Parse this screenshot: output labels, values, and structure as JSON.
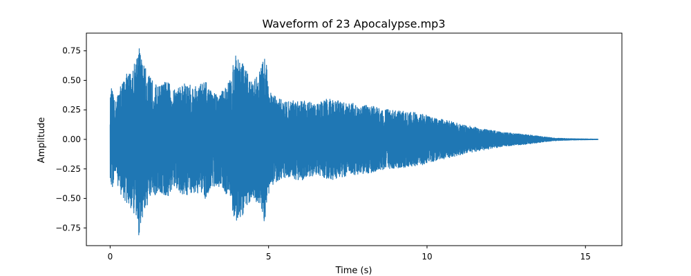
{
  "chart_data": {
    "type": "line",
    "title": "Waveform of 23 Apocalypse.mp3",
    "xlabel": "Time (s)",
    "ylabel": "Amplitude",
    "xlim": [
      -0.75,
      16.15
    ],
    "ylim": [
      -0.9,
      0.9
    ],
    "xticks": [
      0,
      5,
      10,
      15
    ],
    "yticks": [
      0.75,
      0.5,
      0.25,
      0.0,
      -0.25,
      -0.5,
      -0.75
    ],
    "xtick_labels": [
      "0",
      "5",
      "10",
      "15"
    ],
    "ytick_labels": [
      "0.75",
      "0.50",
      "0.25",
      "0.00",
      "−0.25",
      "−0.50",
      "−0.75"
    ],
    "grid": false,
    "legend": "none",
    "series": [
      {
        "color": "#1f77b4",
        "duration_s": 15.4,
        "envelope": {
          "t": [
            0.0,
            0.05,
            0.15,
            0.3,
            0.5,
            0.7,
            0.8,
            0.9,
            1.0,
            1.2,
            1.5,
            1.8,
            2.0,
            2.3,
            2.7,
            3.0,
            3.2,
            3.5,
            3.8,
            3.95,
            4.1,
            4.3,
            4.5,
            4.7,
            4.9,
            5.05,
            5.3,
            5.6,
            6.0,
            6.5,
            6.9,
            7.3,
            7.8,
            8.3,
            8.8,
            9.3,
            9.8,
            10.3,
            10.8,
            11.2,
            11.6,
            12.0,
            12.4,
            12.8,
            13.2,
            13.6,
            14.0,
            14.5,
            15.0,
            15.4
          ],
          "amplitude": [
            0.35,
            0.45,
            0.3,
            0.45,
            0.55,
            0.6,
            0.68,
            0.82,
            0.68,
            0.55,
            0.45,
            0.5,
            0.42,
            0.48,
            0.45,
            0.5,
            0.4,
            0.4,
            0.52,
            0.72,
            0.7,
            0.58,
            0.48,
            0.58,
            0.72,
            0.4,
            0.35,
            0.32,
            0.35,
            0.3,
            0.35,
            0.32,
            0.3,
            0.28,
            0.25,
            0.24,
            0.22,
            0.18,
            0.15,
            0.12,
            0.1,
            0.08,
            0.06,
            0.05,
            0.04,
            0.025,
            0.012,
            0.006,
            0.004,
            0.002
          ]
        }
      }
    ]
  }
}
